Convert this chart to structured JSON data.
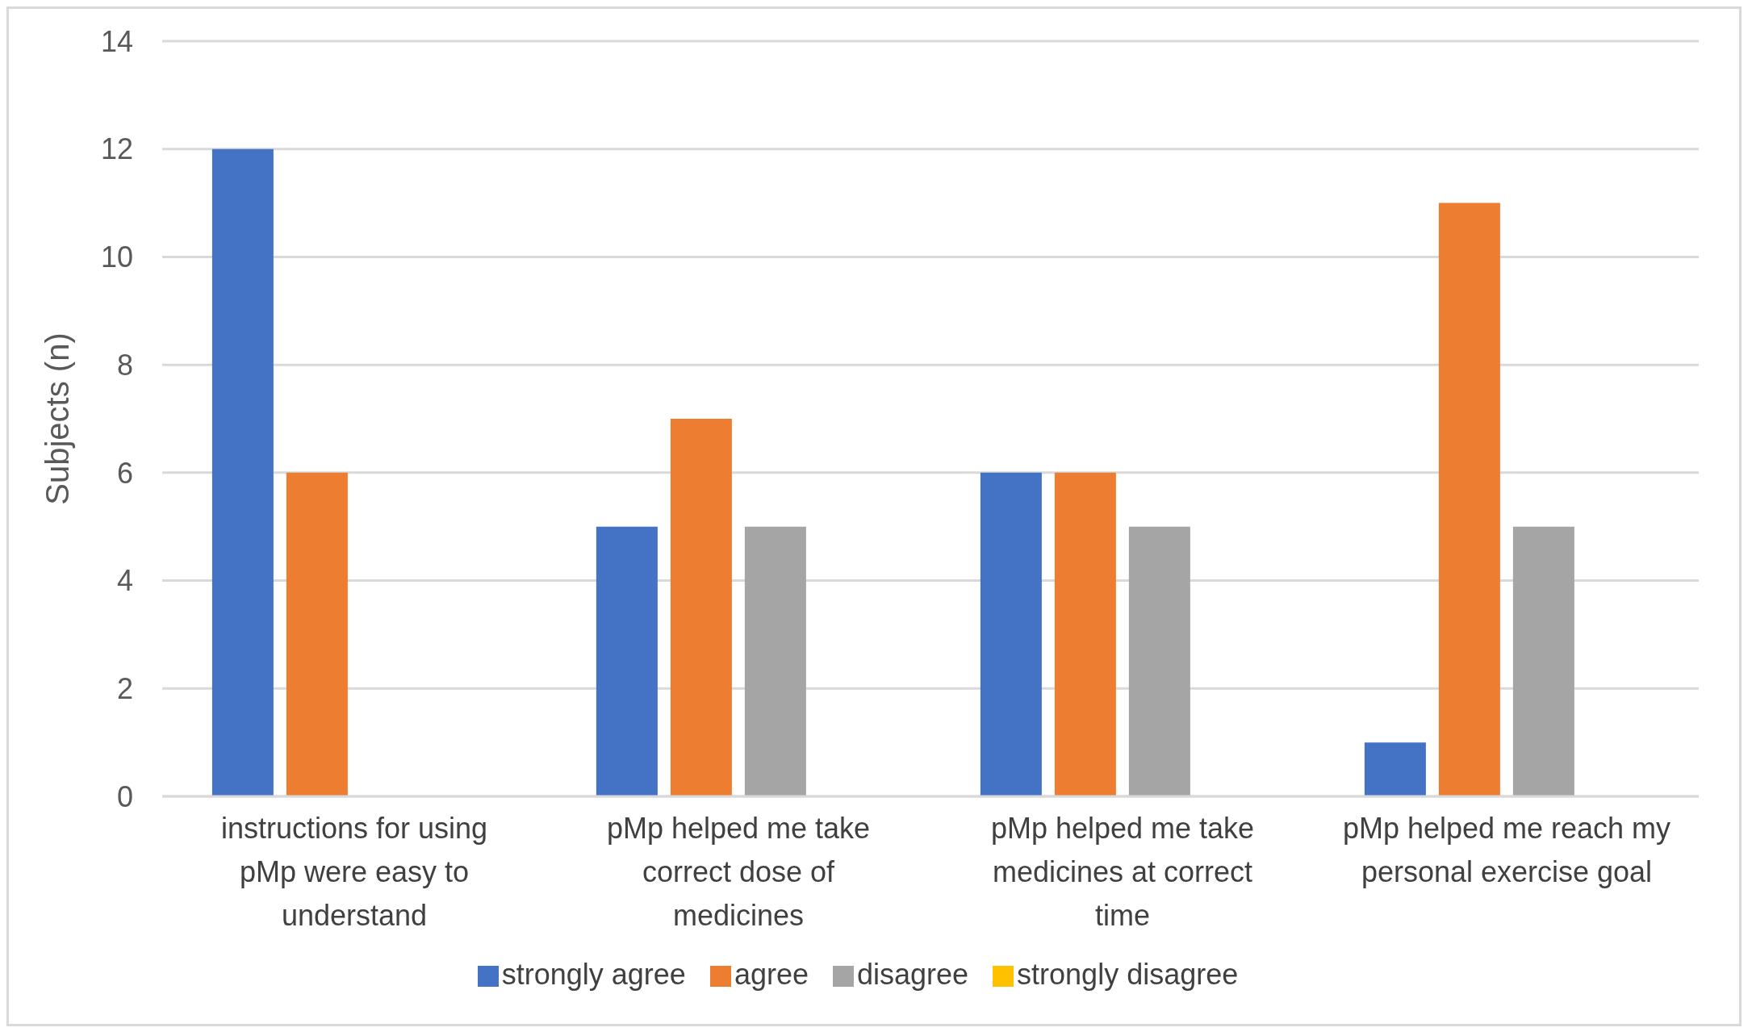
{
  "chart_data": {
    "type": "bar",
    "ylabel": "Subjects (n)",
    "categories": [
      "instructions for using pMp were easy to understand",
      "pMp helped me take correct dose of medicines",
      "pMp helped me take medicines at correct time",
      "pMp helped me reach my personal exercise goal"
    ],
    "series": [
      {
        "name": "strongly agree",
        "color": "#4472c4",
        "values": [
          12,
          5,
          6,
          1
        ]
      },
      {
        "name": "agree",
        "color": "#ed7d31",
        "values": [
          6,
          7,
          6,
          11
        ]
      },
      {
        "name": "disagree",
        "color": "#a5a5a5",
        "values": [
          0,
          5,
          5,
          5
        ]
      },
      {
        "name": "strongly disagree",
        "color": "#ffc000",
        "values": [
          0,
          0,
          0,
          0
        ]
      }
    ],
    "ylim": [
      0,
      14
    ],
    "yticks": [
      0,
      2,
      4,
      6,
      8,
      10,
      12,
      14
    ],
    "grid": "y",
    "legend": "bottom"
  }
}
